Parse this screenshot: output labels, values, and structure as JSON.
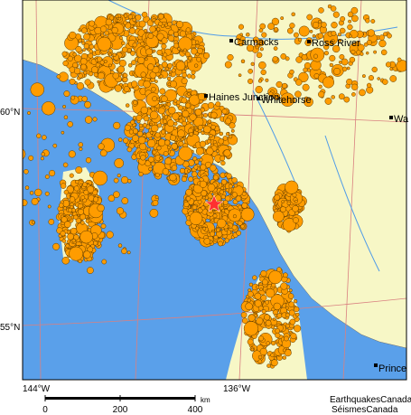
{
  "map": {
    "places": [
      "Carmacks",
      "Ross River",
      "Haines Junction",
      "Whitehorse",
      "Wa",
      "Prince"
    ],
    "latitudes": [
      "60°N",
      "55°N"
    ],
    "longitudes": [
      "144°W",
      "136°W"
    ],
    "scale_bar": {
      "ticks": [
        0,
        200,
        400
      ],
      "unit": "km"
    },
    "credits": [
      "EarthquakesCanada",
      "SéismesCanada"
    ]
  }
}
